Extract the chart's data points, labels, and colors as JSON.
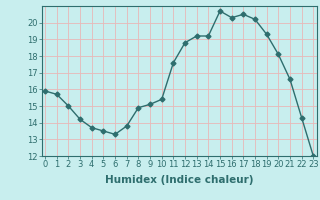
{
  "x": [
    0,
    1,
    2,
    3,
    4,
    5,
    6,
    7,
    8,
    9,
    10,
    11,
    12,
    13,
    14,
    15,
    16,
    17,
    18,
    19,
    20,
    21,
    22,
    23
  ],
  "y": [
    15.9,
    15.7,
    15.0,
    14.2,
    13.7,
    13.5,
    13.3,
    13.8,
    14.9,
    15.1,
    15.4,
    17.6,
    18.8,
    19.2,
    19.2,
    20.7,
    20.3,
    20.5,
    20.2,
    19.3,
    18.1,
    16.6,
    14.3,
    12.0
  ],
  "line_color": "#2e6e6e",
  "marker": "D",
  "marker_size": 2.5,
  "bg_color": "#c8eeee",
  "grid_color": "#e8b8b8",
  "xlabel": "Humidex (Indice chaleur)",
  "ylim": [
    12,
    21
  ],
  "xlim": [
    -0.3,
    23.3
  ],
  "yticks": [
    12,
    13,
    14,
    15,
    16,
    17,
    18,
    19,
    20
  ],
  "xticks": [
    0,
    1,
    2,
    3,
    4,
    5,
    6,
    7,
    8,
    9,
    10,
    11,
    12,
    13,
    14,
    15,
    16,
    17,
    18,
    19,
    20,
    21,
    22,
    23
  ],
  "tick_label_fontsize": 6,
  "xlabel_fontsize": 7.5
}
